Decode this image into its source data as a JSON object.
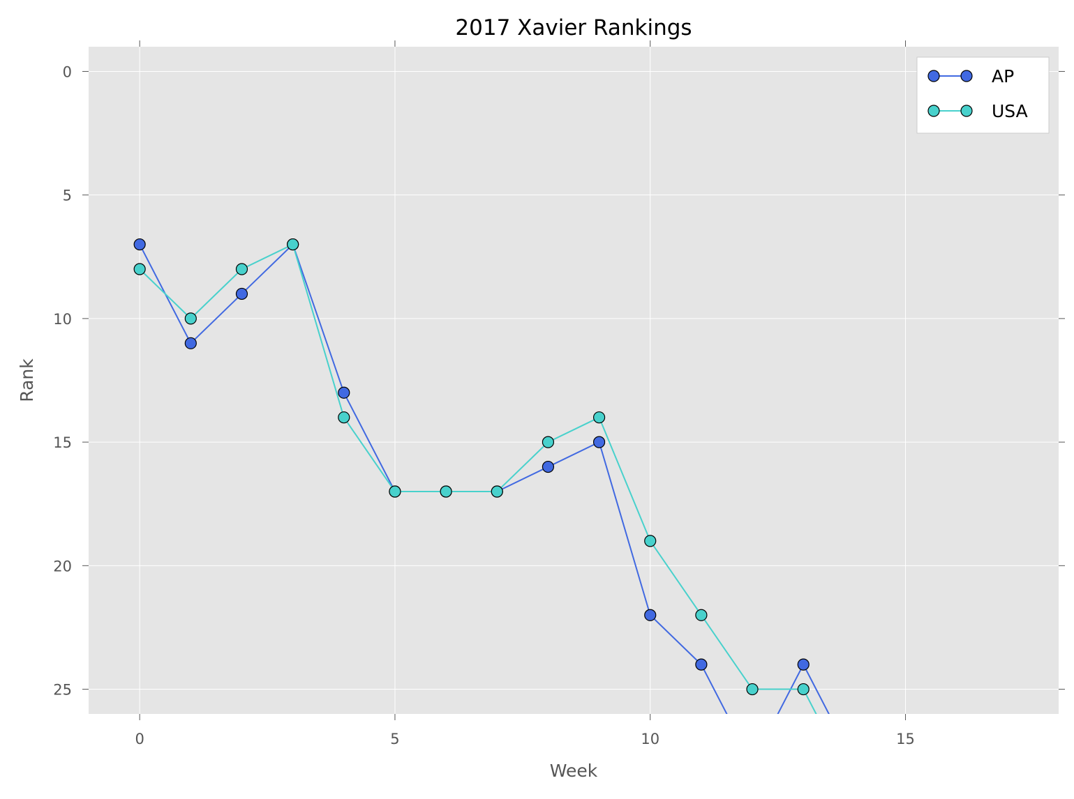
{
  "chart_data": {
    "type": "line",
    "title": "2017 Xavier Rankings",
    "xlabel": "Week",
    "ylabel": "Rank",
    "xlim": [
      -1,
      18
    ],
    "ylim": [
      26,
      -1
    ],
    "y_inverted": true,
    "xticks": [
      0,
      5,
      10,
      15
    ],
    "yticks": [
      0,
      5,
      10,
      15,
      20,
      25
    ],
    "grid": true,
    "legend_position": "top-right",
    "background_color": "#e5e5e5",
    "series": [
      {
        "name": "AP",
        "color": "#4169e1",
        "marker": "circle",
        "x": [
          0,
          1,
          2,
          3,
          4,
          5,
          6,
          7,
          8,
          9,
          10,
          11,
          12,
          13,
          14
        ],
        "y": [
          7,
          11,
          9,
          7,
          13,
          17,
          17,
          17,
          16,
          15,
          22,
          24,
          28,
          24,
          28
        ]
      },
      {
        "name": "USA",
        "color": "#48d1cc",
        "marker": "circle",
        "x": [
          0,
          1,
          2,
          3,
          4,
          5,
          6,
          7,
          8,
          9,
          10,
          11,
          12,
          13,
          14
        ],
        "y": [
          8,
          10,
          8,
          7,
          14,
          17,
          17,
          17,
          15,
          14,
          19,
          22,
          25,
          25,
          29
        ]
      }
    ]
  }
}
